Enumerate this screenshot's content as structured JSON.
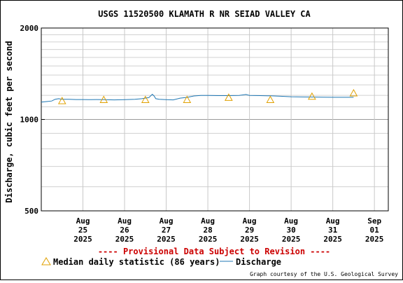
{
  "chart_data": {
    "type": "line",
    "title": "USGS 11520500 KLAMATH R NR SEIAD VALLEY CA",
    "ylabel": "Discharge, cubic feet per second",
    "xlabel": "",
    "y_scale": "log",
    "ylim": [
      500,
      2000
    ],
    "y_tick_labels": [
      "500",
      "1000",
      "2000"
    ],
    "xlim": [
      "2025-08-24T00:00",
      "2025-09-01T08:00"
    ],
    "x_ticks": [
      {
        "lines": [
          "Aug",
          "25",
          "2025"
        ],
        "x": "2025-08-25T00:00"
      },
      {
        "lines": [
          "Aug",
          "26",
          "2025"
        ],
        "x": "2025-08-26T00:00"
      },
      {
        "lines": [
          "Aug",
          "27",
          "2025"
        ],
        "x": "2025-08-27T00:00"
      },
      {
        "lines": [
          "Aug",
          "28",
          "2025"
        ],
        "x": "2025-08-28T00:00"
      },
      {
        "lines": [
          "Aug",
          "29",
          "2025"
        ],
        "x": "2025-08-29T00:00"
      },
      {
        "lines": [
          "Aug",
          "30",
          "2025"
        ],
        "x": "2025-08-30T00:00"
      },
      {
        "lines": [
          "Aug",
          "31",
          "2025"
        ],
        "x": "2025-08-31T00:00"
      },
      {
        "lines": [
          "Sep",
          "01",
          "2025"
        ],
        "x": "2025-09-01T00:00"
      }
    ],
    "grid": true,
    "series": [
      {
        "name": "Discharge",
        "color": "#1f77b4",
        "x": [
          "2025-08-24T00:00",
          "2025-08-24T03:00",
          "2025-08-24T06:00",
          "2025-08-24T08:00",
          "2025-08-24T10:00",
          "2025-08-24T12:00",
          "2025-08-24T16:00",
          "2025-08-24T20:00",
          "2025-08-25T00:00",
          "2025-08-25T04:00",
          "2025-08-25T08:00",
          "2025-08-25T12:00",
          "2025-08-25T18:00",
          "2025-08-26T00:00",
          "2025-08-26T06:00",
          "2025-08-26T10:00",
          "2025-08-26T14:00",
          "2025-08-26T16:00",
          "2025-08-26T17:00",
          "2025-08-26T18:00",
          "2025-08-26T20:00",
          "2025-08-27T00:00",
          "2025-08-27T04:00",
          "2025-08-27T08:00",
          "2025-08-27T12:00",
          "2025-08-27T16:00",
          "2025-08-27T20:00",
          "2025-08-28T00:00",
          "2025-08-28T06:00",
          "2025-08-28T12:00",
          "2025-08-28T18:00",
          "2025-08-28T22:00",
          "2025-08-29T00:00",
          "2025-08-29T06:00",
          "2025-08-29T12:00",
          "2025-08-29T18:00",
          "2025-08-30T00:00",
          "2025-08-30T06:00",
          "2025-08-30T12:00",
          "2025-08-30T18:00",
          "2025-08-31T00:00",
          "2025-08-31T06:00",
          "2025-08-31T12:00"
        ],
        "values": [
          1140,
          1145,
          1150,
          1165,
          1170,
          1165,
          1165,
          1163,
          1163,
          1162,
          1163,
          1162,
          1160,
          1162,
          1165,
          1170,
          1180,
          1210,
          1195,
          1170,
          1165,
          1162,
          1160,
          1175,
          1182,
          1195,
          1200,
          1200,
          1198,
          1198,
          1200,
          1208,
          1200,
          1198,
          1196,
          1192,
          1188,
          1186,
          1185,
          1184,
          1183,
          1183,
          1183
        ]
      },
      {
        "name": "Median daily statistic (86 years)",
        "color": "#e0a000",
        "marker": "triangle",
        "x": [
          "2025-08-24T12:00",
          "2025-08-25T12:00",
          "2025-08-26T12:00",
          "2025-08-27T12:00",
          "2025-08-28T12:00",
          "2025-08-29T12:00",
          "2025-08-30T12:00",
          "2025-08-31T12:00"
        ],
        "values": [
          1150,
          1160,
          1160,
          1160,
          1180,
          1160,
          1190,
          1220
        ]
      }
    ],
    "legend": [
      {
        "label": "Median daily statistic (86 years)",
        "marker": "triangle",
        "color": "#e0a000"
      },
      {
        "label": "Discharge",
        "marker": "line",
        "color": "#1f77b4"
      }
    ],
    "legend_placement": "bottom",
    "annotation": "---- Provisional Data Subject to Revision ----",
    "annotation_color": "#cc0000",
    "credit": "Graph courtesy of the U.S. Geological Survey"
  }
}
